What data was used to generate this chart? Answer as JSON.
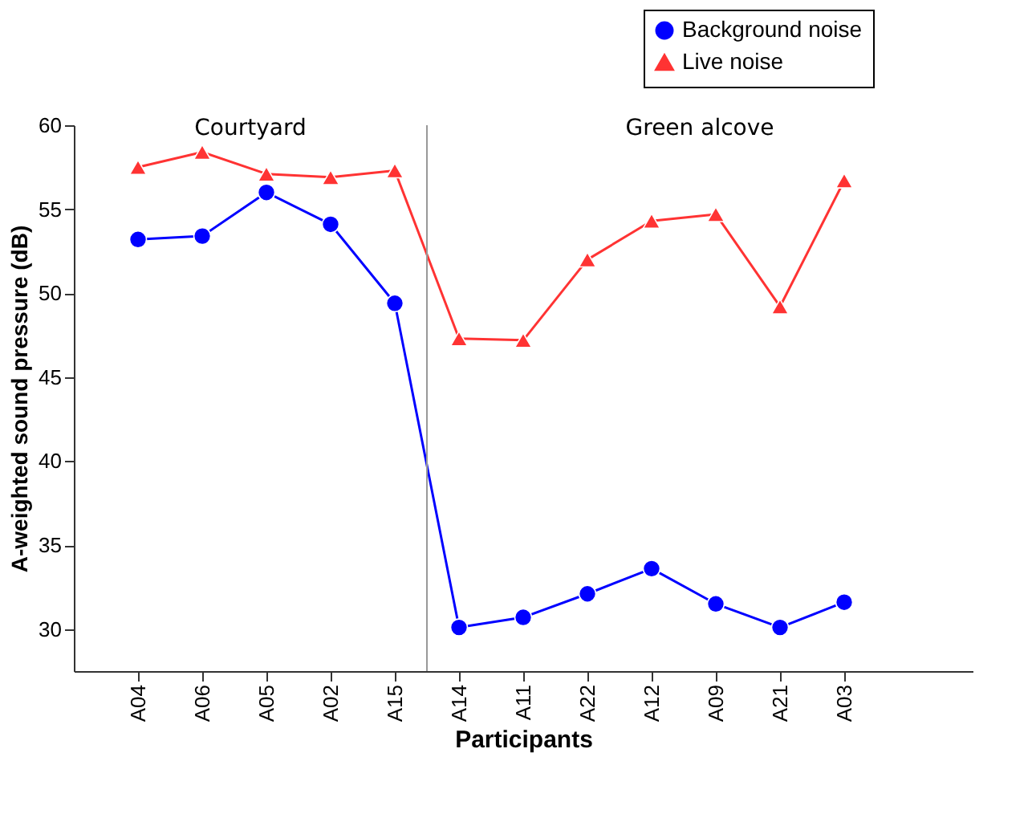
{
  "chart_data": {
    "type": "line",
    "xlabel": "Participants",
    "ylabel": "A-weighted sound pressure (dB)",
    "categories": [
      "A04",
      "A06",
      "A05",
      "A02",
      "A15",
      "A14",
      "A11",
      "A22",
      "A12",
      "A09",
      "A21",
      "A03"
    ],
    "series": [
      {
        "name": "Background noise",
        "color": "#0000ff",
        "marker": "circle",
        "values": [
          53.2,
          53.4,
          56.0,
          54.1,
          49.4,
          30.1,
          30.7,
          32.1,
          33.6,
          31.5,
          30.1,
          31.6
        ]
      },
      {
        "name": "Live noise",
        "color": "#ff3333",
        "marker": "triangle",
        "values": [
          57.5,
          58.4,
          57.1,
          56.9,
          57.3,
          47.3,
          47.2,
          52.0,
          54.3,
          54.7,
          49.2,
          56.7
        ]
      }
    ],
    "ylim": [
      27.5,
      60
    ],
    "yticks": [
      30,
      35,
      40,
      45,
      50,
      55,
      60
    ],
    "annotations": [
      "Courtyard",
      "Green alcove"
    ],
    "grid": false,
    "legend": "top right",
    "line_style": "solid"
  }
}
